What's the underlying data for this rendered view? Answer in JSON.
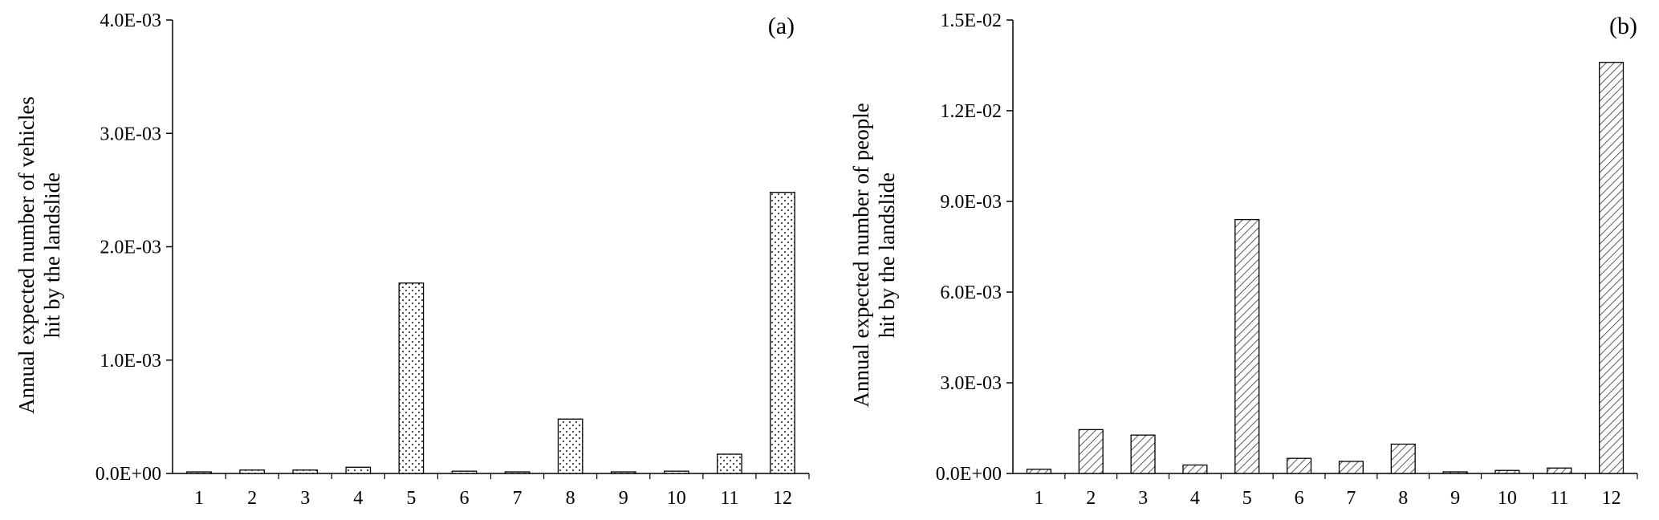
{
  "chart_data": [
    {
      "type": "bar",
      "panel_label": "(a)",
      "ylabel_lines": [
        "Annual expected number of vehicles",
        "hit by the landslide"
      ],
      "categories": [
        "1",
        "2",
        "3",
        "4",
        "5",
        "6",
        "7",
        "8",
        "9",
        "10",
        "11",
        "12"
      ],
      "values": [
        8e-06,
        3e-05,
        3e-05,
        5.5e-05,
        0.00168,
        2e-05,
        8e-06,
        0.00048,
        5e-06,
        2e-05,
        0.00017,
        0.00248
      ],
      "ylim": [
        0,
        0.004
      ],
      "yticks": [
        0,
        0.001,
        0.002,
        0.003,
        0.004
      ],
      "ytick_labels": [
        "0.0E+00",
        "1.0E-03",
        "2.0E-03",
        "3.0E-03",
        "4.0E-03"
      ],
      "pattern": "dots",
      "grid": false
    },
    {
      "type": "bar",
      "panel_label": "(b)",
      "ylabel_lines": [
        "Annual expected number of people",
        "hit by the landslide"
      ],
      "categories": [
        "1",
        "2",
        "3",
        "4",
        "5",
        "6",
        "7",
        "8",
        "9",
        "10",
        "11",
        "12"
      ],
      "values": [
        0.00014,
        0.00145,
        0.00127,
        0.00028,
        0.0084,
        0.0005,
        0.0004,
        0.00097,
        3e-05,
        0.0001,
        0.00018,
        0.0136
      ],
      "ylim": [
        0,
        0.015
      ],
      "yticks": [
        0,
        0.003,
        0.006,
        0.009,
        0.012,
        0.015
      ],
      "ytick_labels": [
        "0.0E+00",
        "3.0E-03",
        "6.0E-03",
        "9.0E-03",
        "1.2E-02",
        "1.5E-02"
      ],
      "pattern": "hatch",
      "grid": false
    }
  ]
}
